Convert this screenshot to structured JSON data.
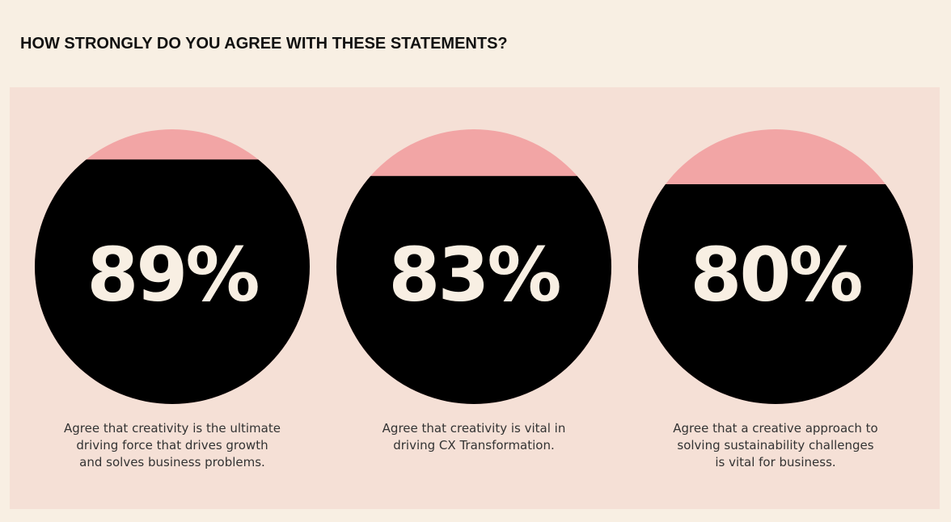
{
  "chart_data": {
    "type": "circle-fill",
    "title": "HOW STRONGLY DO YOU AGREE WITH THESE STATEMENTS?",
    "categories": [
      [
        "Agree that creativity is the ultimate",
        "driving force that drives growth",
        "and solves business problems."
      ],
      [
        "Agree that creativity is vital in",
        "driving CX Transformation."
      ],
      [
        "Agree that a creative approach to",
        "solving sustainability challenges",
        "is vital for business."
      ]
    ],
    "values": [
      89,
      83,
      80
    ],
    "value_labels": [
      "89%",
      "83%",
      "80%"
    ],
    "ylim": [
      0,
      100
    ],
    "color": "#000000",
    "remainder_color": "#f2a5a5"
  }
}
